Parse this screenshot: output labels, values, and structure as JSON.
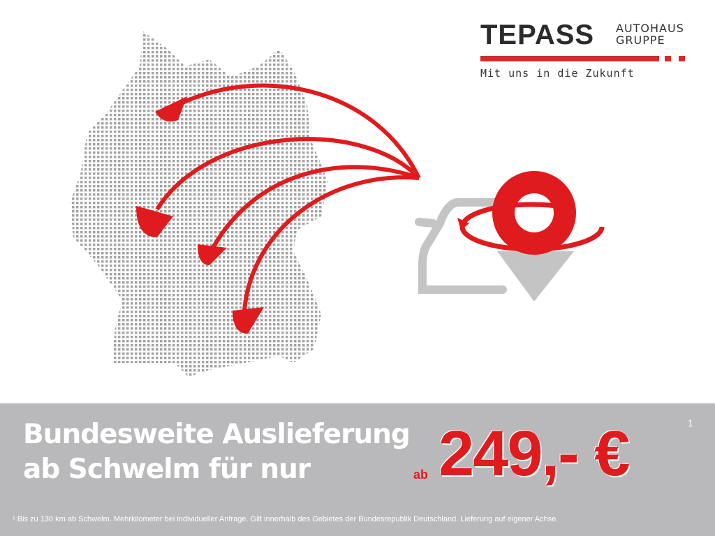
{
  "logo": {
    "brand": "TEPASS",
    "line1": "AUTOHAUS",
    "line2": "GRUPPE",
    "tagline": "Mit uns in die Zukunft"
  },
  "headline": {
    "line1": "Bundesweite Auslieferung",
    "line2": "ab Schwelm für nur"
  },
  "price": {
    "prefix": "ab",
    "amount": "249,- €",
    "footnote_mark": "1"
  },
  "footnote": "¹ Bis zu 130 km ab Schwelm. Mehrkilometer bei individueller Anfrage. Gilt innerhalb des Gebietes der Bundesrepublik Deutschland. Lieferung auf eigener Achse.",
  "colors": {
    "accent": "#e01b1d",
    "band": "#b9b9bb",
    "map": "#9a9a9a"
  },
  "icons": [
    "germany-dot-map",
    "delivery-arrow",
    "car-icon",
    "location-pin-icon"
  ]
}
